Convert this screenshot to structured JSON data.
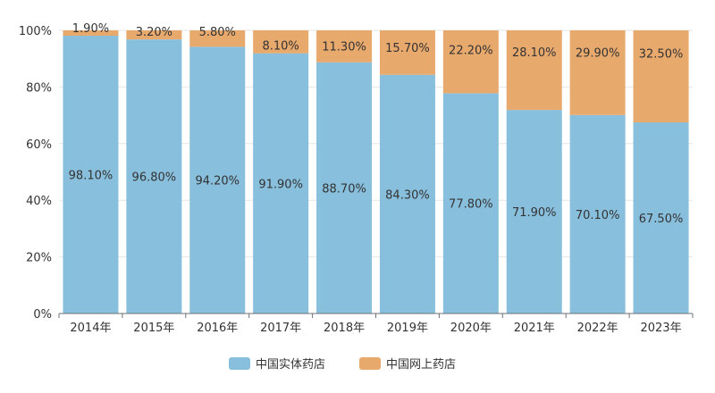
{
  "chart_data": {
    "type": "bar",
    "stacked": true,
    "normalized": true,
    "categories": [
      "2014年",
      "2015年",
      "2016年",
      "2017年",
      "2018年",
      "2019年",
      "2020年",
      "2021年",
      "2022年",
      "2023年"
    ],
    "series": [
      {
        "name": "中国实体药店",
        "color": "#88bfdc",
        "values": [
          98.1,
          96.8,
          94.2,
          91.9,
          88.7,
          84.3,
          77.8,
          71.9,
          70.1,
          67.5
        ],
        "labels": [
          "98.10%",
          "96.80%",
          "94.20%",
          "91.90%",
          "88.70%",
          "84.30%",
          "77.80%",
          "71.90%",
          "70.10%",
          "67.50%"
        ]
      },
      {
        "name": "中国网上药店",
        "color": "#e8a96d",
        "values": [
          1.9,
          3.2,
          5.8,
          8.1,
          11.3,
          15.7,
          22.2,
          28.1,
          29.9,
          32.5
        ],
        "labels": [
          "1.90%",
          "3.20%",
          "5.80%",
          "8.10%",
          "11.30%",
          "15.70%",
          "22.20%",
          "28.10%",
          "29.90%",
          "32.50%"
        ]
      }
    ],
    "ylim": [
      0,
      100
    ],
    "yticks": [
      0,
      20,
      40,
      60,
      80,
      100
    ],
    "ytick_labels": [
      "0%",
      "20%",
      "40%",
      "60%",
      "80%",
      "100%"
    ],
    "grid": true,
    "legend_position": "bottom-center"
  }
}
